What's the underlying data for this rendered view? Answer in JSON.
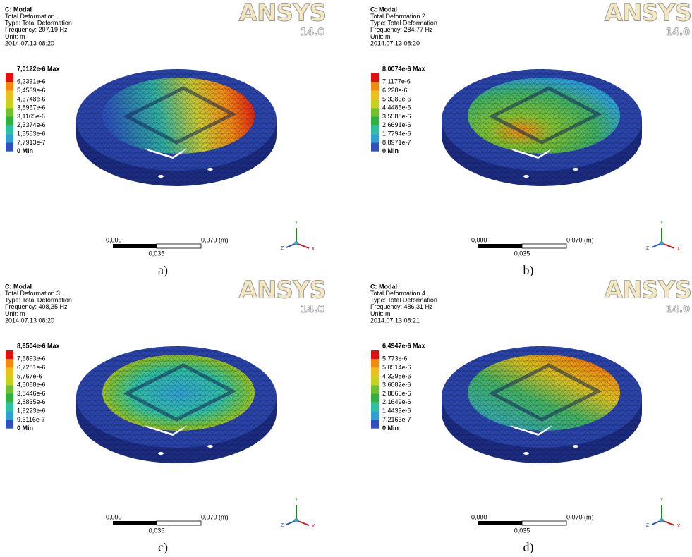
{
  "logo": "ANSYS",
  "version": "14.0",
  "scale_labels": [
    "0,000",
    "0,070 (m)",
    "0,035"
  ],
  "axis_labels": [
    "Y",
    "Z",
    "X"
  ],
  "legend_colors": [
    "#e01010",
    "#f08a10",
    "#e8c020",
    "#c8d020",
    "#70c030",
    "#30b040",
    "#30c0a0",
    "#30a0d0",
    "#3050c0"
  ],
  "panels": [
    {
      "header": [
        "C: Modal",
        "Total Deformation",
        "Type: Total Deformation",
        "Frequency: 207,19 Hz",
        "Unit: m",
        "2014.07.13 08:20"
      ],
      "legend": [
        "7,0122e-6 Max",
        "6,2331e-6",
        "5,4539e-6",
        "4,6748e-6",
        "3,8957e-6",
        "3,1165e-6",
        "2,3374e-6",
        "1,5583e-6",
        "7,7913e-7",
        "0 Min"
      ],
      "caption": "a)"
    },
    {
      "header": [
        "C: Modal",
        "Total Deformation 2",
        "Type: Total Deformation",
        "Frequency: 284,77 Hz",
        "Unit: m",
        "2014.07.13 08:20"
      ],
      "legend": [
        "8,0074e-6 Max",
        "7,1177e-6",
        "6,228e-6",
        "5,3383e-6",
        "4,4485e-6",
        "3,5588e-6",
        "2,6691e-6",
        "1,7794e-6",
        "8,8971e-7",
        "0 Min"
      ],
      "caption": "b)"
    },
    {
      "header": [
        "C: Modal",
        "Total Deformation 3",
        "Type: Total Deformation",
        "Frequency: 408,35 Hz",
        "Unit: m",
        "2014.07.13 08:20"
      ],
      "legend": [
        "8,6504e-6 Max",
        "7,6893e-6",
        "6,7281e-6",
        "5,767e-6",
        "4,8058e-6",
        "3,8446e-6",
        "2,8835e-6",
        "1,9223e-6",
        "9,6116e-7",
        "0 Min"
      ],
      "caption": "c)"
    },
    {
      "header": [
        "C: Modal",
        "Total Deformation 4",
        "Type: Total Deformation",
        "Frequency: 486,31 Hz",
        "Unit: m",
        "2014.07.13 08:21"
      ],
      "legend": [
        "6,4947e-6 Max",
        "5,773e-6",
        "5,0514e-6",
        "4,3298e-6",
        "3,6082e-6",
        "2,8865e-6",
        "2,1649e-6",
        "1,4433e-6",
        "7,2163e-7",
        "0 Min"
      ],
      "caption": "d)"
    }
  ]
}
